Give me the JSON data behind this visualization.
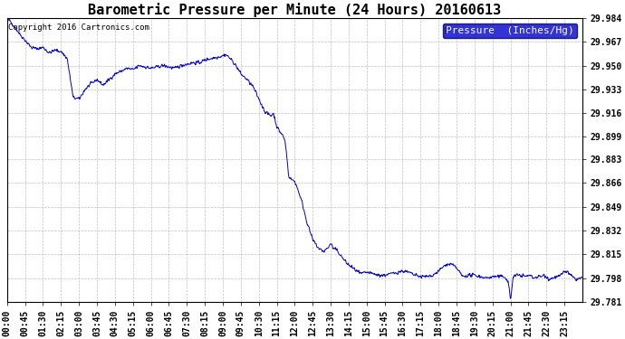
{
  "title": "Barometric Pressure per Minute (24 Hours) 20160613",
  "copyright": "Copyright 2016 Cartronics.com",
  "legend_label": "Pressure  (Inches/Hg)",
  "line_color": "#0000cc",
  "background_color": "#ffffff",
  "grid_color": "#b0b0b0",
  "legend_bg": "#0000cc",
  "legend_text_color": "#ffffff",
  "ylim_min": 29.781,
  "ylim_max": 29.984,
  "yticks": [
    29.781,
    29.798,
    29.815,
    29.832,
    29.849,
    29.866,
    29.883,
    29.899,
    29.916,
    29.933,
    29.95,
    29.967,
    29.984
  ],
  "xtick_labels": [
    "00:00",
    "00:45",
    "01:30",
    "02:15",
    "03:00",
    "03:45",
    "04:30",
    "05:15",
    "06:00",
    "06:45",
    "07:30",
    "08:15",
    "09:00",
    "09:45",
    "10:30",
    "11:15",
    "12:00",
    "12:45",
    "13:30",
    "14:15",
    "15:00",
    "15:45",
    "16:30",
    "17:15",
    "18:00",
    "18:45",
    "19:30",
    "20:15",
    "21:00",
    "21:45",
    "22:30",
    "23:15"
  ],
  "title_fontsize": 11,
  "tick_fontsize": 7,
  "legend_fontsize": 8,
  "copyright_fontsize": 6.5
}
